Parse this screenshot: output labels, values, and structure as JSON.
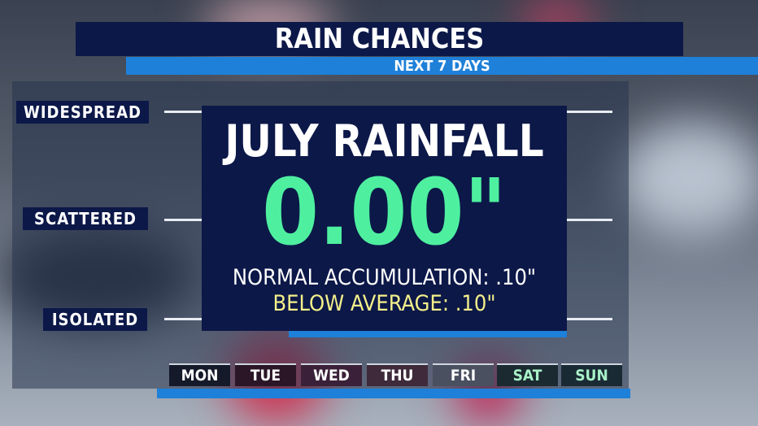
{
  "header": {
    "title": "RAIN CHANCES",
    "subtitle": "NEXT 7 DAYS"
  },
  "levels": [
    "WIDESPREAD",
    "SCATTERED",
    "ISOLATED"
  ],
  "days": [
    "MON",
    "TUE",
    "WED",
    "THU",
    "FRI",
    "SAT",
    "SUN"
  ],
  "panel": {
    "title": "JULY RAINFALL",
    "value": "0.00\"",
    "normal": "NORMAL ACCUMULATION: .10\"",
    "below": "BELOW AVERAGE: .10\""
  }
}
